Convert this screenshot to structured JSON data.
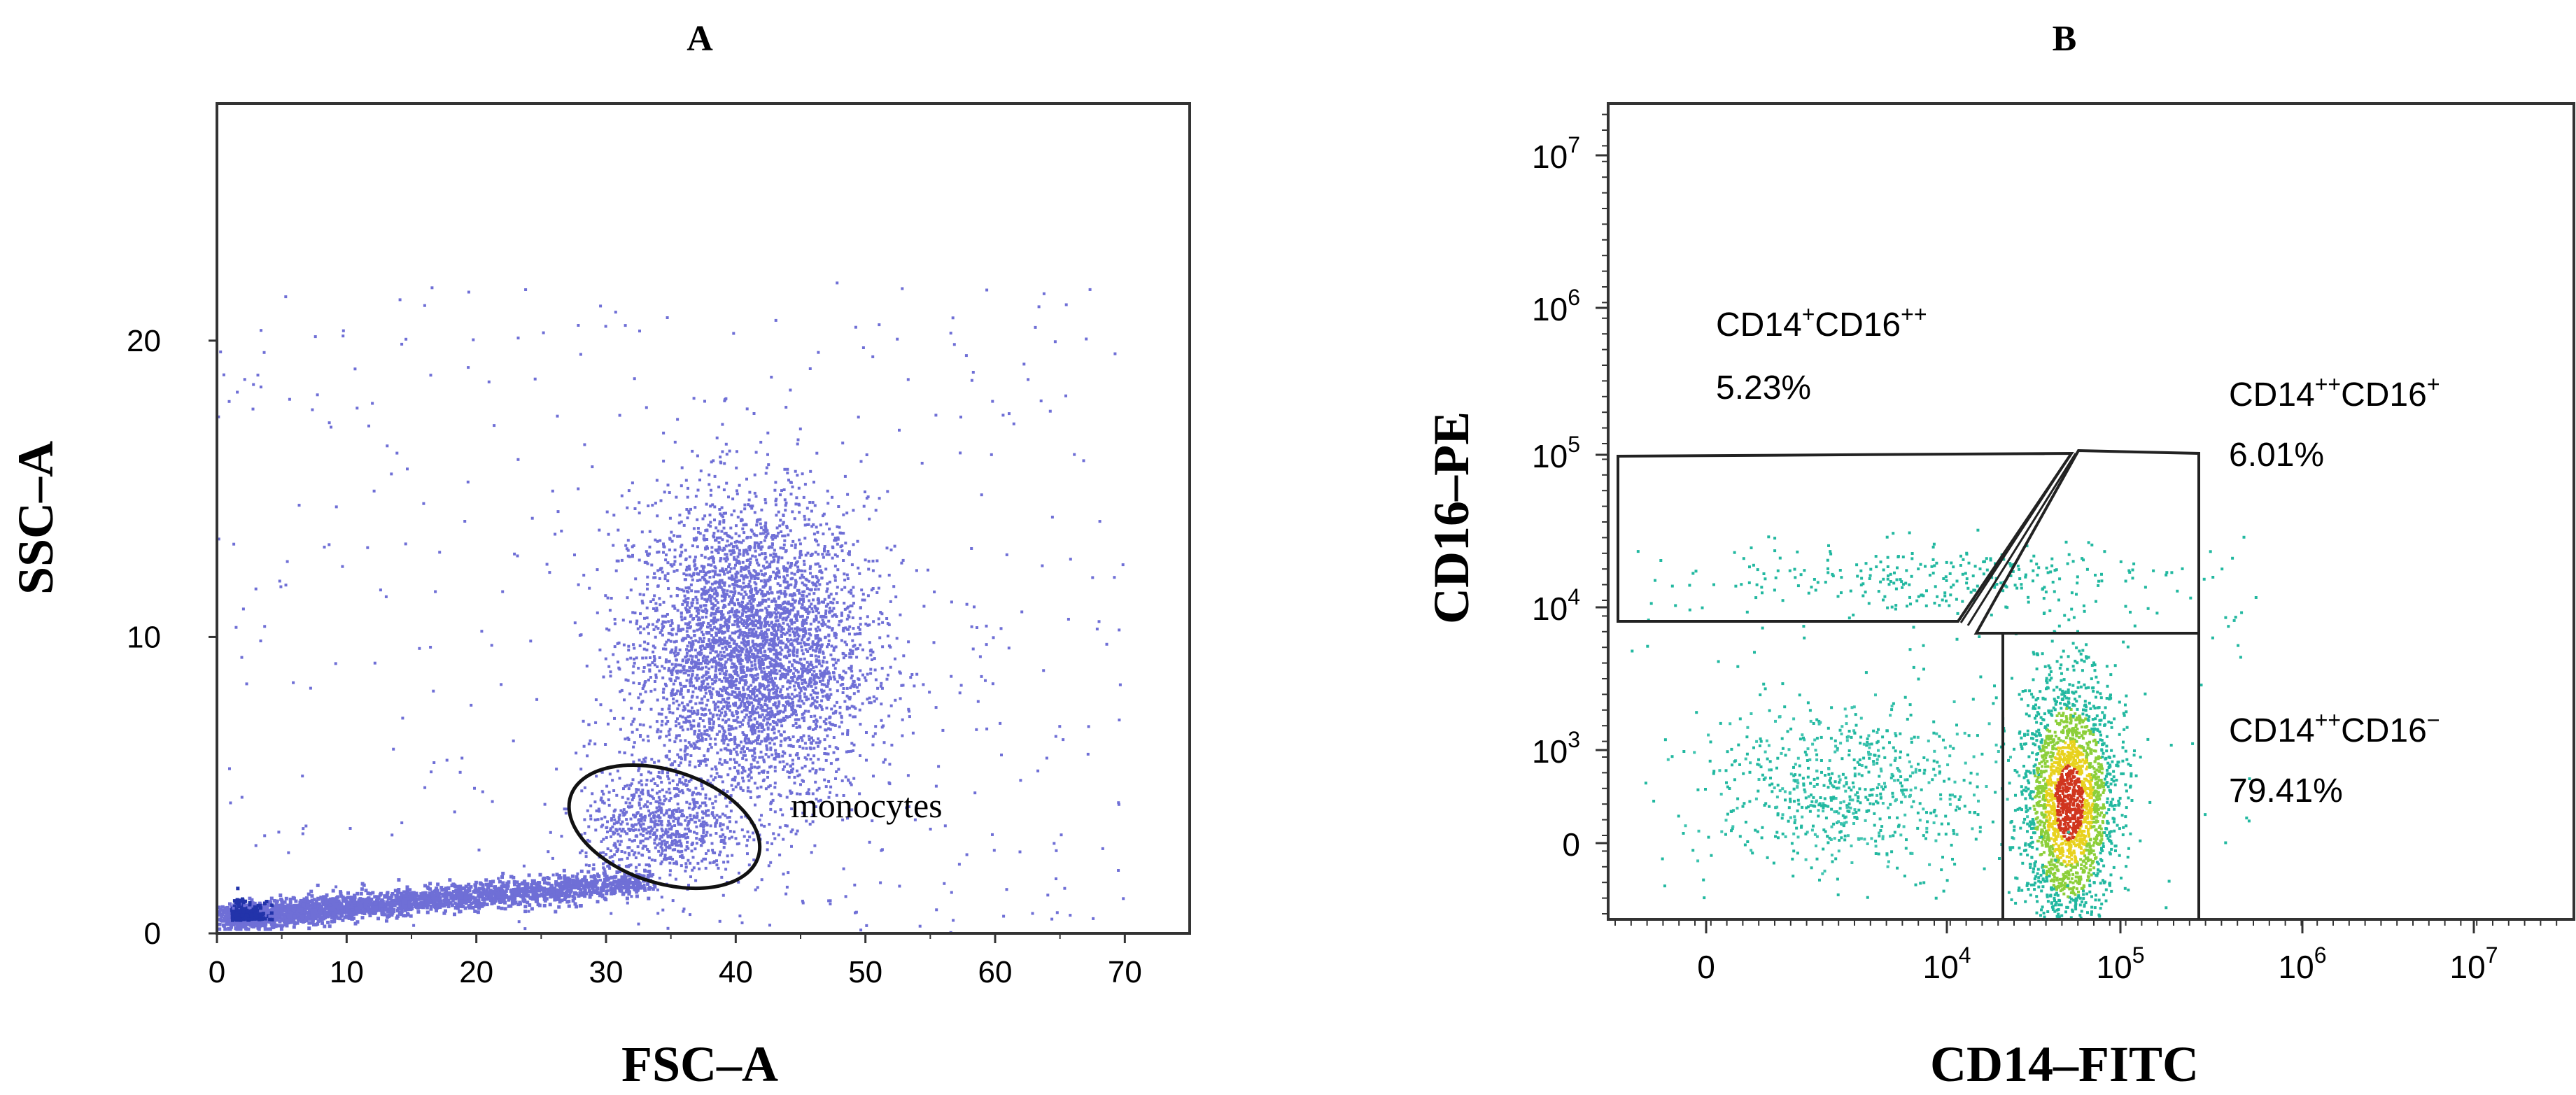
{
  "chart_data": [
    {
      "panel": "A",
      "type": "scatter",
      "xlabel": "FSC–A",
      "ylabel": "SSC–A",
      "xlim": [
        0,
        75
      ],
      "ylim": [
        0,
        28
      ],
      "xticks": [
        "0",
        "10",
        "20",
        "30",
        "40",
        "50",
        "60",
        "70"
      ],
      "yticks": [
        "0",
        "10",
        "20"
      ],
      "point_color": "#6f6fd6",
      "dense_color": "#2233aa",
      "populations": [
        {
          "name": "granulocyte cluster",
          "center": [
            41,
            9.5
          ],
          "spread": [
            4.5,
            2.6
          ]
        },
        {
          "name": "debris tail",
          "from": [
            1,
            0.6
          ],
          "to": [
            33,
            1.8
          ]
        },
        {
          "name": "monocyte cluster",
          "center": [
            34,
            3.6
          ],
          "spread": [
            3,
            0.9
          ]
        }
      ],
      "gate": {
        "label": "monocytes",
        "center": [
          34.5,
          3.6
        ],
        "rx": 7.6,
        "ry": 1.9,
        "angle_deg": -18
      }
    },
    {
      "panel": "B",
      "type": "scatter",
      "xlabel": "CD14–FITC",
      "ylabel": "CD16–PE",
      "scale": "biexponential",
      "xticks": [
        "0",
        "10^4",
        "10^5",
        "10^6",
        "10^7"
      ],
      "yticks": [
        "0",
        "10^3",
        "10^4",
        "10^5",
        "10^6",
        "10^7"
      ],
      "colors": {
        "low": "#22b8a0",
        "mid": "#8ccf3a",
        "high": "#e8d21e",
        "peak": "#d0351e"
      },
      "gates": [
        {
          "name": "CD14+CD16++",
          "label_main": "CD14",
          "sup1": "+",
          "label_mid": "CD16",
          "sup2": "++",
          "percent": "5.23%"
        },
        {
          "name": "CD14++CD16+",
          "label_main": "CD14",
          "sup1": "++",
          "label_mid": "CD16",
          "sup2": "+",
          "percent": "6.01%"
        },
        {
          "name": "CD14++CD16-",
          "label_main": "CD14",
          "sup1": "++",
          "label_mid": "CD16",
          "sup2": "−",
          "percent": "79.41%"
        }
      ]
    }
  ]
}
